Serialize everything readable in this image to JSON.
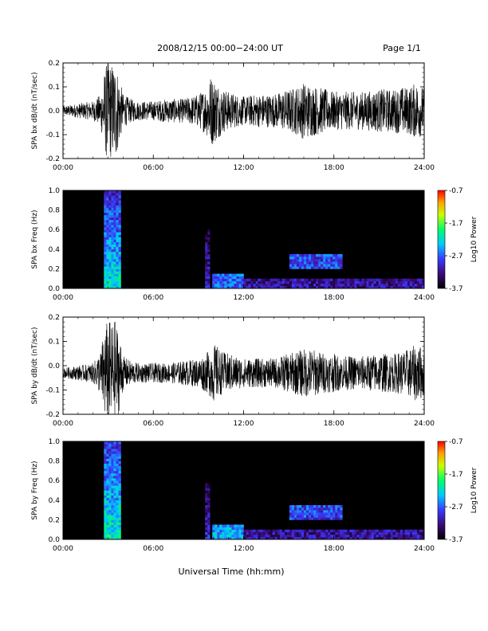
{
  "header": {
    "title": "2008/12/15   00:00−24:00 UT",
    "page": "Page 1/1"
  },
  "footer": {
    "xlabel": "Universal Time (hh:mm)"
  },
  "chart_data": [
    {
      "type": "line",
      "ylabel": "SPA bx dB/dt (nT/sec)",
      "xlim": [
        0,
        24
      ],
      "ylim": [
        -0.2,
        0.2
      ],
      "x_ticks": [
        "00:00",
        "06:00",
        "12:00",
        "18:00",
        "24:00"
      ],
      "y_ticks": [
        "-0.2",
        "-0.1",
        "0.0",
        "0.1",
        "0.2"
      ],
      "series": [
        {
          "x": [
            0,
            1,
            2,
            2.5,
            2.8,
            3.0,
            3.2,
            3.5,
            3.8,
            4.0,
            4.5,
            5,
            6,
            7,
            8,
            9,
            9.5,
            9.8,
            10.0,
            10.3,
            10.5,
            11,
            12,
            13,
            14,
            15,
            15.5,
            16,
            16.5,
            17,
            17.5,
            18,
            18.5,
            19,
            20,
            21,
            22,
            22.5,
            23,
            23.5,
            24
          ],
          "y": [
            0.02,
            0.03,
            0.04,
            0.07,
            0.18,
            0.22,
            0.2,
            0.21,
            0.12,
            0.07,
            0.05,
            0.04,
            0.04,
            0.05,
            0.05,
            0.07,
            0.1,
            0.15,
            0.14,
            0.12,
            0.1,
            0.08,
            0.06,
            0.07,
            0.07,
            0.09,
            0.1,
            0.12,
            0.11,
            0.1,
            0.09,
            0.08,
            0.08,
            0.08,
            0.08,
            0.09,
            0.09,
            0.1,
            0.1,
            0.12,
            0.1
          ],
          "mean": 0.0
        }
      ]
    },
    {
      "type": "heatmap",
      "ylabel": "SPA bx Freq (Hz)",
      "xlim": [
        0,
        24
      ],
      "ylim": [
        0,
        1.0
      ],
      "x_ticks": [
        "00:00",
        "06:00",
        "12:00",
        "18:00",
        "24:00"
      ],
      "y_ticks": [
        "0.0",
        "0.2",
        "0.4",
        "0.6",
        "0.8",
        "1.0"
      ],
      "colorbar": {
        "label": "Log10 Power",
        "ticks": [
          "-0.7",
          "-1.7",
          "-2.7",
          "-3.7"
        ],
        "range": [
          -3.7,
          -0.7
        ]
      },
      "features": [
        {
          "t": [
            2.8,
            3.8
          ],
          "fmax": 1.0,
          "level": -2.2
        },
        {
          "t": [
            9.4,
            9.8
          ],
          "fmax": 0.6,
          "level": -3.0
        },
        {
          "t": [
            10.0,
            12.0
          ],
          "fmax": 0.15,
          "level": -2.6
        },
        {
          "t": [
            15.0,
            18.5
          ],
          "fmin": 0.2,
          "fmax": 0.35,
          "level": -2.8
        },
        {
          "t": [
            12.0,
            24.0
          ],
          "fmax": 0.1,
          "level": -3.1
        }
      ]
    },
    {
      "type": "line",
      "ylabel": "SPA by dB/dt (nT/sec)",
      "xlim": [
        0,
        24
      ],
      "ylim": [
        -0.2,
        0.2
      ],
      "x_ticks": [
        "00:00",
        "06:00",
        "12:00",
        "18:00",
        "24:00"
      ],
      "y_ticks": [
        "-0.2",
        "-0.1",
        "0.0",
        "0.1",
        "0.2"
      ],
      "series": [
        {
          "x": [
            0,
            1,
            2,
            2.5,
            2.8,
            3.0,
            3.2,
            3.5,
            3.8,
            4.0,
            4.5,
            5,
            6,
            7,
            8,
            9,
            9.5,
            9.8,
            10.0,
            10.3,
            10.5,
            11,
            12,
            13,
            14,
            15,
            15.5,
            16,
            16.5,
            17,
            17.5,
            18,
            18.5,
            19,
            20,
            21,
            22,
            22.5,
            23,
            23.5,
            24
          ],
          "y": [
            0.02,
            0.03,
            0.04,
            0.09,
            0.2,
            0.22,
            0.21,
            0.22,
            0.14,
            0.07,
            0.05,
            0.04,
            0.04,
            0.04,
            0.05,
            0.06,
            0.08,
            0.1,
            0.12,
            0.11,
            0.09,
            0.08,
            0.06,
            0.06,
            0.06,
            0.08,
            0.09,
            0.1,
            0.1,
            0.09,
            0.08,
            0.08,
            0.07,
            0.07,
            0.07,
            0.08,
            0.08,
            0.09,
            0.1,
            0.12,
            0.1
          ],
          "mean": -0.03
        }
      ]
    },
    {
      "type": "heatmap",
      "ylabel": "SPA by Freq (Hz)",
      "xlim": [
        0,
        24
      ],
      "ylim": [
        0,
        1.0
      ],
      "x_ticks": [
        "00:00",
        "06:00",
        "12:00",
        "18:00",
        "24:00"
      ],
      "y_ticks": [
        "0.0",
        "0.2",
        "0.4",
        "0.6",
        "0.8",
        "1.0"
      ],
      "colorbar": {
        "label": "Log10 Power",
        "ticks": [
          "-0.7",
          "-1.7",
          "-2.7",
          "-3.7"
        ],
        "range": [
          -3.7,
          -0.7
        ]
      },
      "features": [
        {
          "t": [
            2.8,
            3.8
          ],
          "fmax": 1.0,
          "level": -2.1
        },
        {
          "t": [
            9.4,
            9.8
          ],
          "fmax": 0.6,
          "level": -3.0
        },
        {
          "t": [
            10.0,
            12.0
          ],
          "fmax": 0.15,
          "level": -2.4
        },
        {
          "t": [
            15.0,
            18.5
          ],
          "fmin": 0.2,
          "fmax": 0.35,
          "level": -2.8
        },
        {
          "t": [
            12.0,
            24.0
          ],
          "fmax": 0.1,
          "level": -3.1
        }
      ]
    }
  ]
}
